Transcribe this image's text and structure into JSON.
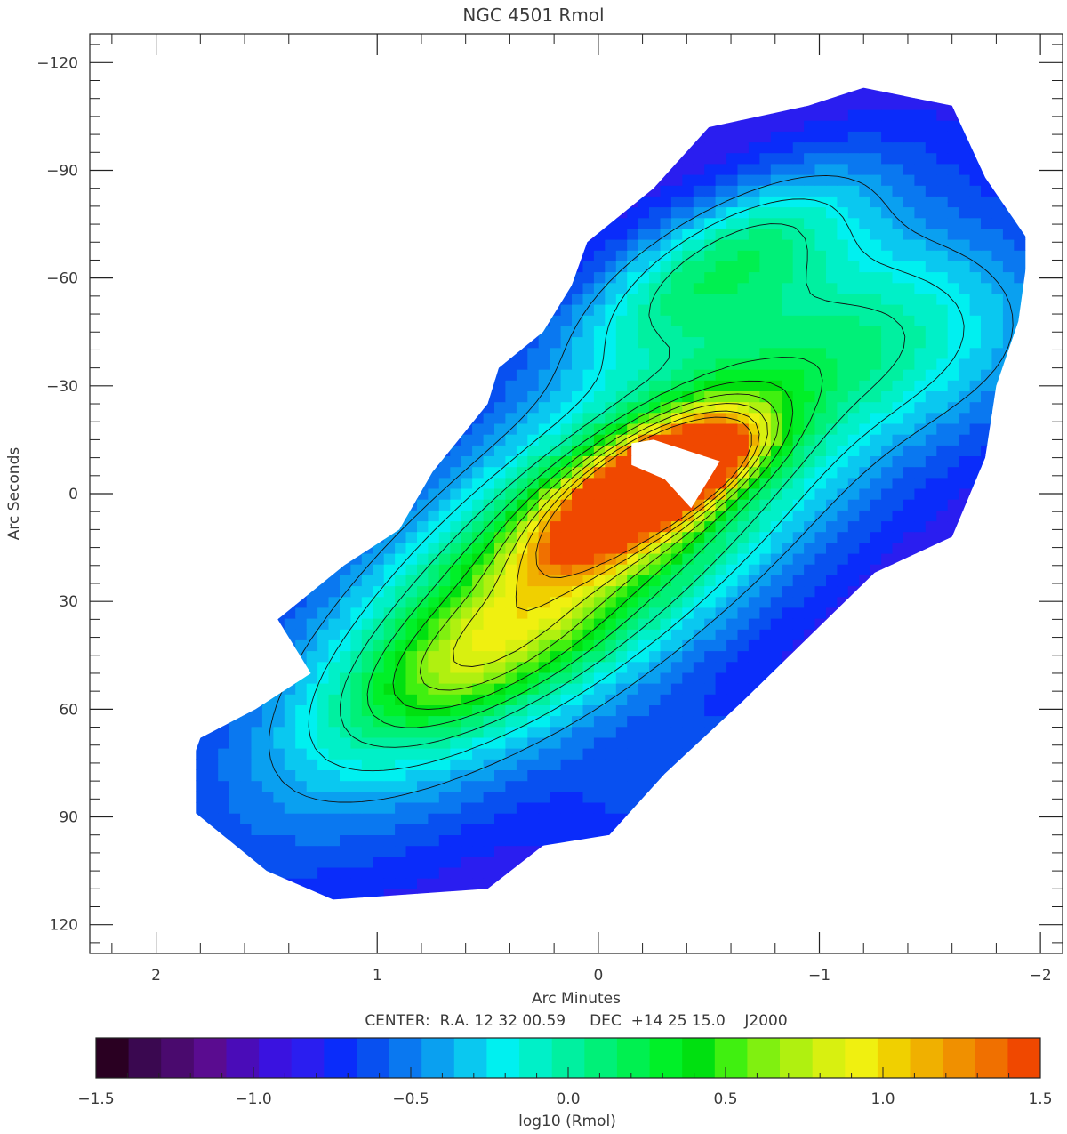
{
  "chart_data": [
    {
      "type": "heatmap",
      "title": "NGC 4501 Rmol",
      "xlabel": "Arc Minutes",
      "ylabel": "Arc Seconds",
      "subtitle": "CENTER:  R.A. 12 32 00.59     DEC  +14 25 15.0    J2000",
      "xlim": [
        2.3,
        -2.1
      ],
      "ylim": [
        -128,
        128
      ],
      "x_ticks": [
        "2",
        "1",
        "0",
        "−1",
        "−2"
      ],
      "x_tick_values": [
        2,
        1,
        0,
        -1,
        -2
      ],
      "y_ticks": [
        "−120",
        "−90",
        "−60",
        "−30",
        "0",
        "30",
        "60",
        "90",
        "120"
      ],
      "y_tick_values": [
        -120,
        -90,
        -60,
        -30,
        0,
        30,
        60,
        90,
        120
      ],
      "grid": false,
      "colorbar": {
        "label": "log10 (Rmol)",
        "range": [
          -1.5,
          1.5
        ],
        "ticks": [
          "−1.5",
          "−1.0",
          "−0.5",
          "0.0",
          "0.5",
          "1.0",
          "1.5"
        ],
        "tick_values": [
          -1.5,
          -1.0,
          -0.5,
          0.0,
          0.5,
          1.0,
          1.5
        ],
        "colors": [
          "#2a0022",
          "#3a0850",
          "#4a0a6e",
          "#5a0c90",
          "#4a0cb8",
          "#3a12e0",
          "#2a1ef0",
          "#0a2cfa",
          "#0850f0",
          "#0a78f0",
          "#0aa0f0",
          "#0ac8f0",
          "#00f0f0",
          "#00f0c8",
          "#00f0a0",
          "#00f078",
          "#00f050",
          "#00f028",
          "#00e010",
          "#40f010",
          "#80f010",
          "#b0f010",
          "#d8f010",
          "#f0f010",
          "#f0d000",
          "#f0b000",
          "#f09000",
          "#f07000",
          "#f04800"
        ]
      },
      "map": {
        "source_resolution_arcsec": 6,
        "source_grid_x_range_arcmin": [
          1.82,
          -1.93
        ],
        "source_grid_y_range_arcsec": [
          113,
          -113
        ],
        "outline": [
          [
            1.9,
            85
          ],
          [
            1.8,
            68
          ],
          [
            1.55,
            60
          ],
          [
            1.3,
            50
          ],
          [
            1.45,
            35
          ],
          [
            1.15,
            20
          ],
          [
            0.9,
            10
          ],
          [
            0.75,
            -6
          ],
          [
            0.5,
            -25
          ],
          [
            0.45,
            -35
          ],
          [
            0.25,
            -45
          ],
          [
            0.12,
            -58
          ],
          [
            0.05,
            -70
          ],
          [
            -0.25,
            -85
          ],
          [
            -0.5,
            -102
          ],
          [
            -0.95,
            -108
          ],
          [
            -1.2,
            -113
          ],
          [
            -1.6,
            -108
          ],
          [
            -1.75,
            -88
          ],
          [
            -1.95,
            -70
          ],
          [
            -1.9,
            -48
          ],
          [
            -1.8,
            -30
          ],
          [
            -1.75,
            -10
          ],
          [
            -1.6,
            12
          ],
          [
            -1.25,
            22
          ],
          [
            -0.95,
            40
          ],
          [
            -0.65,
            58
          ],
          [
            -0.3,
            78
          ],
          [
            -0.05,
            95
          ],
          [
            0.25,
            98
          ],
          [
            0.5,
            110
          ],
          [
            1.2,
            113
          ],
          [
            1.5,
            105
          ]
        ],
        "hole": [
          [
            -0.25,
            -15
          ],
          [
            -0.55,
            -9
          ],
          [
            -0.42,
            4
          ],
          [
            -0.3,
            -4
          ],
          [
            -0.15,
            -8
          ],
          [
            -0.15,
            -14
          ]
        ],
        "components": [
          {
            "x": 0.05,
            "y": 15,
            "a": 1.15,
            "b": 0.42,
            "angle": 38,
            "amp": 0.68
          },
          {
            "x": -0.2,
            "y": -2,
            "a": 0.36,
            "b": 0.14,
            "angle": 34,
            "amp": 0.95
          },
          {
            "x": -0.42,
            "y": -6,
            "a": 0.22,
            "b": 0.09,
            "angle": 30,
            "amp": 0.5
          },
          {
            "x": -0.55,
            "y": -65,
            "a": 0.55,
            "b": 0.2,
            "angle": 30,
            "amp": 0.35
          },
          {
            "x": 0.55,
            "y": 45,
            "a": 0.45,
            "b": 0.18,
            "angle": 30,
            "amp": 0.25
          },
          {
            "x": -1.45,
            "y": -45,
            "a": 0.55,
            "b": 0.35,
            "angle": 0,
            "amp": 0.2
          },
          {
            "x": -0.5,
            "y": 80,
            "a": 0.4,
            "b": 0.2,
            "angle": 20,
            "amp": 0.15
          }
        ],
        "base_level": -0.9,
        "contour_levels": [
          -0.4,
          -0.2,
          0.0,
          0.2,
          0.4,
          0.6,
          0.8,
          1.0,
          1.2
        ]
      }
    }
  ]
}
